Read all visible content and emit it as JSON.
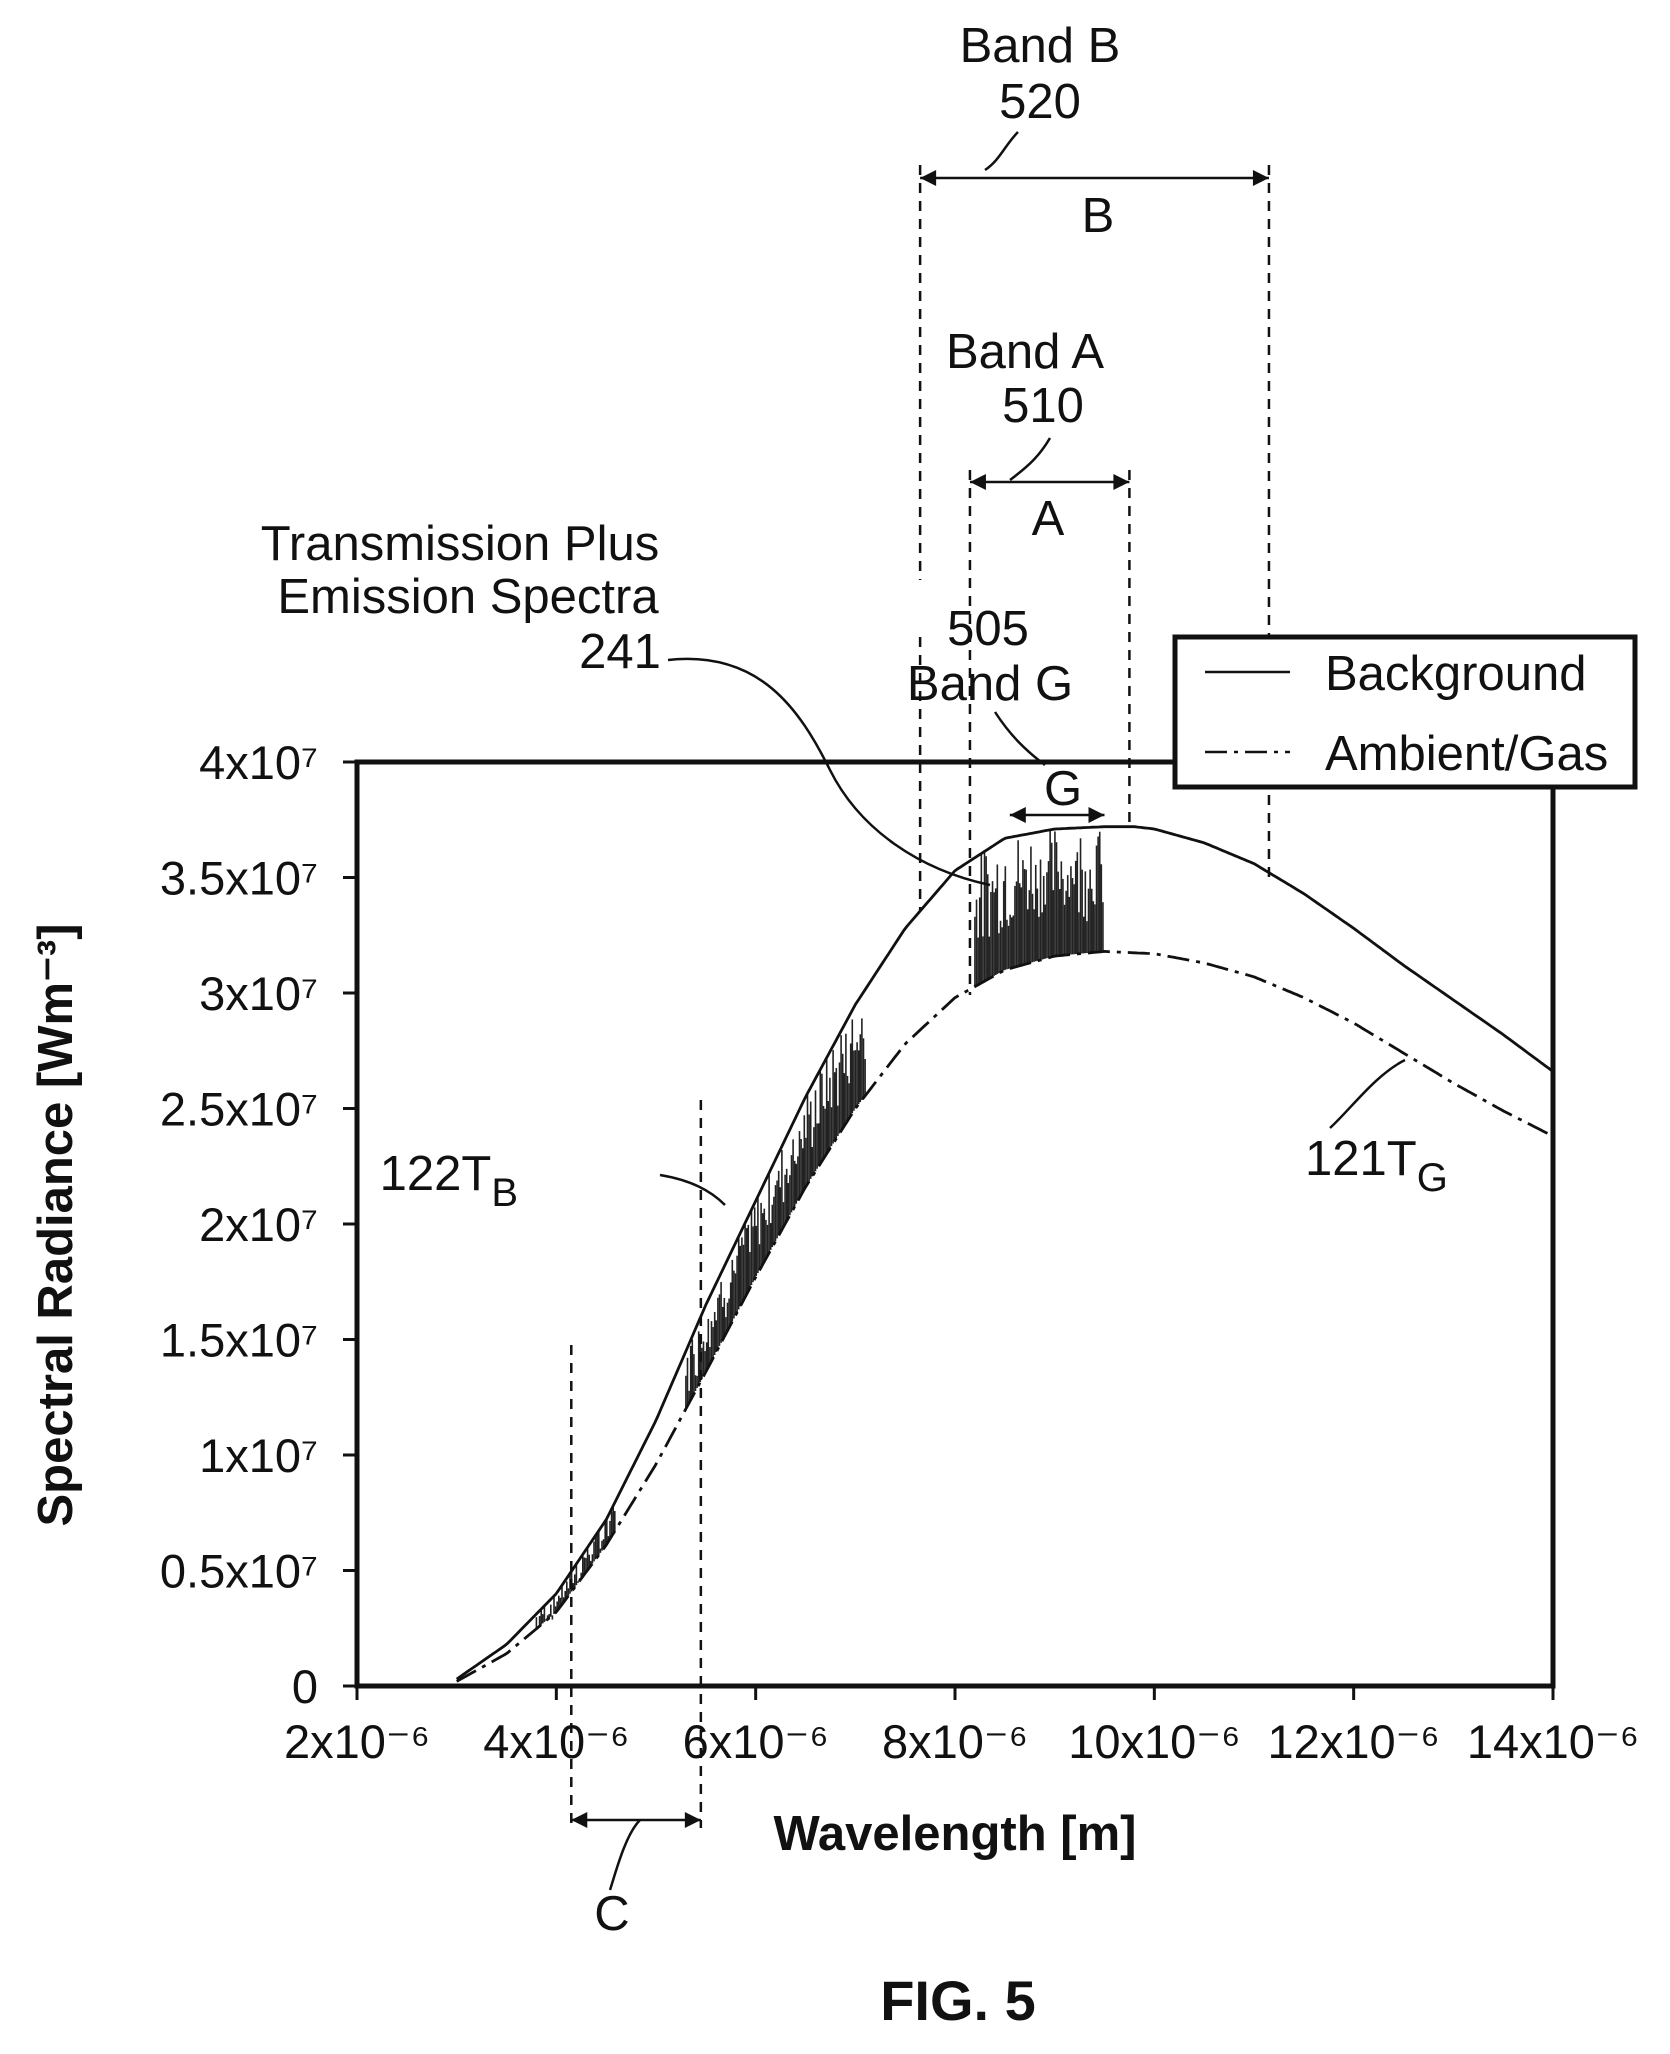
{
  "chart_data": {
    "type": "line",
    "xlabel": "Wavelength [m]",
    "ylabel": "Spectral Radiance [Wm⁻³]",
    "xlim": [
      2e-06,
      1.4e-05
    ],
    "ylim": [
      0,
      40000000
    ],
    "grid": false,
    "legend_position": "top-right",
    "x_ticks": [
      {
        "value": 2e-06,
        "label": "2x10⁻⁶"
      },
      {
        "value": 4e-06,
        "label": "4x10⁻⁶"
      },
      {
        "value": 6e-06,
        "label": "6x10⁻⁶"
      },
      {
        "value": 8e-06,
        "label": "8x10⁻⁶"
      },
      {
        "value": 1e-05,
        "label": "10x10⁻⁶"
      },
      {
        "value": 1.2e-05,
        "label": "12x10⁻⁶"
      },
      {
        "value": 1.4e-05,
        "label": "14x10⁻⁶"
      }
    ],
    "y_ticks": [
      {
        "value": 0,
        "label": "0"
      },
      {
        "value": 5000000,
        "label": "0.5x10⁷"
      },
      {
        "value": 10000000,
        "label": "1x10⁷"
      },
      {
        "value": 15000000,
        "label": "1.5x10⁷"
      },
      {
        "value": 20000000,
        "label": "2x10⁷"
      },
      {
        "value": 25000000,
        "label": "2.5x10⁷"
      },
      {
        "value": 30000000,
        "label": "3x10⁷"
      },
      {
        "value": 35000000,
        "label": "3.5x10⁷"
      },
      {
        "value": 40000000,
        "label": "4x10⁷"
      }
    ],
    "series": [
      {
        "name": "Background",
        "style": "solid",
        "x": [
          3e-06,
          3.5e-06,
          4e-06,
          4.5e-06,
          5e-06,
          5.5e-06,
          6e-06,
          6.5e-06,
          7e-06,
          7.5e-06,
          8e-06,
          8.5e-06,
          9e-06,
          9.5e-06,
          9.8e-06,
          1e-05,
          1.05e-05,
          1.1e-05,
          1.15e-05,
          1.2e-05,
          1.25e-05,
          1.3e-05,
          1.35e-05,
          1.4e-05
        ],
        "y": [
          300000,
          1800000,
          4000000,
          7200000,
          11500000,
          16500000,
          21000000,
          25500000,
          29500000,
          32800000,
          35300000,
          36700000,
          37100000,
          37200000,
          37200000,
          37100000,
          36500000,
          35600000,
          34300000,
          32800000,
          31200000,
          29700000,
          28200000,
          26600000
        ]
      },
      {
        "name": "Ambient/Gas",
        "style": "dash-dot",
        "x": [
          3e-06,
          3.5e-06,
          4e-06,
          4.5e-06,
          5e-06,
          5.5e-06,
          6e-06,
          6.5e-06,
          7e-06,
          7.5e-06,
          8e-06,
          8.5e-06,
          9e-06,
          9.5e-06,
          1e-05,
          1.05e-05,
          1.1e-05,
          1.15e-05,
          1.2e-05,
          1.25e-05,
          1.3e-05,
          1.35e-05,
          1.4e-05
        ],
        "y": [
          200000,
          1400000,
          3200000,
          6100000,
          9600000,
          13600000,
          17700000,
          21600000,
          25000000,
          27800000,
          29800000,
          31000000,
          31600000,
          31800000,
          31700000,
          31300000,
          30700000,
          29800000,
          28700000,
          27400000,
          26100000,
          24900000,
          23800000
        ]
      }
    ],
    "band_markers": [
      {
        "label": "A",
        "x_start": 8.15e-06,
        "x_end": 9.75e-06
      },
      {
        "label": "B",
        "x_start": 7.65e-06,
        "x_end": 1.115e-05
      },
      {
        "label": "G",
        "x_start": 8.55e-06,
        "x_end": 9.5e-06
      },
      {
        "label": "C",
        "x_start": 4.15e-06,
        "x_end": 5.45e-06
      }
    ],
    "emission_region_ranges": [
      [
        3.8e-06,
        4.6e-06
      ],
      [
        5.3e-06,
        7.1e-06
      ],
      [
        8.2e-06,
        9.5e-06
      ]
    ]
  },
  "annotations": {
    "band_b_title": "Band B",
    "band_b_number": "520",
    "band_b_letter": "B",
    "band_a_title": "Band A",
    "band_a_number": "510",
    "band_a_letter": "A",
    "spectra_line1": "Transmission Plus",
    "spectra_line2": "Emission Spectra",
    "spectra_number": "241",
    "band_g_number": "505",
    "band_g_title": "Band G",
    "band_g_letter": "G",
    "ref_122": "122T",
    "ref_122_sub": "B",
    "ref_121": "121T",
    "ref_121_sub": "G",
    "band_c_letter": "C"
  },
  "legend": {
    "background_label": "Background",
    "ambient_label": "Ambient/Gas"
  },
  "caption": "FIG. 5"
}
